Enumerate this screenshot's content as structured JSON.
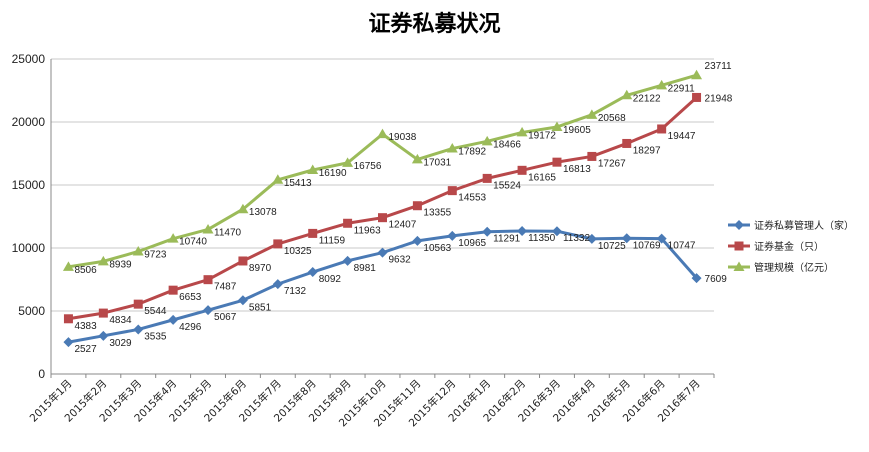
{
  "chart_data": {
    "type": "line",
    "title": "证券私募状况",
    "xlabel": "",
    "ylabel": "",
    "ylim": [
      0,
      25000
    ],
    "yticks": [
      "0",
      "5000",
      "10000",
      "15000",
      "20000",
      "25000"
    ],
    "grid": "horizontal",
    "legend_position": "right",
    "categories": [
      "2015年1月",
      "2015年2月",
      "2015年3月",
      "2015年4月",
      "2015年5月",
      "2015年6月",
      "2015年7月",
      "2015年8月",
      "2015年9月",
      "2015年10月",
      "2015年11月",
      "2015年12月",
      "2016年1月",
      "2016年2月",
      "2016年3月",
      "2016年4月",
      "2016年5月",
      "2016年6月",
      "2016年7月"
    ],
    "series": [
      {
        "name": "证券私募管理人（家）",
        "color": "#4a7ab5",
        "marker": "diamond",
        "values": [
          2527,
          3029,
          3535,
          4296,
          5067,
          5851,
          7132,
          8092,
          8981,
          9632,
          10563,
          10965,
          11291,
          11350,
          11332,
          10725,
          10769,
          10747,
          7609
        ]
      },
      {
        "name": "证券基金（只）",
        "color": "#b8484a",
        "marker": "square",
        "values": [
          4383,
          4834,
          5544,
          6653,
          7487,
          8970,
          10325,
          11159,
          11963,
          12407,
          13355,
          14553,
          15524,
          16165,
          16813,
          17267,
          18297,
          19447,
          21948
        ]
      },
      {
        "name": "管理规模（亿元）",
        "color": "#9bbb59",
        "marker": "triangle",
        "values": [
          8506,
          8939,
          9723,
          10740,
          11470,
          13078,
          15413,
          16190,
          16756,
          19038,
          17031,
          17892,
          18466,
          19172,
          19605,
          20568,
          22122,
          22911,
          23711
        ]
      }
    ]
  }
}
